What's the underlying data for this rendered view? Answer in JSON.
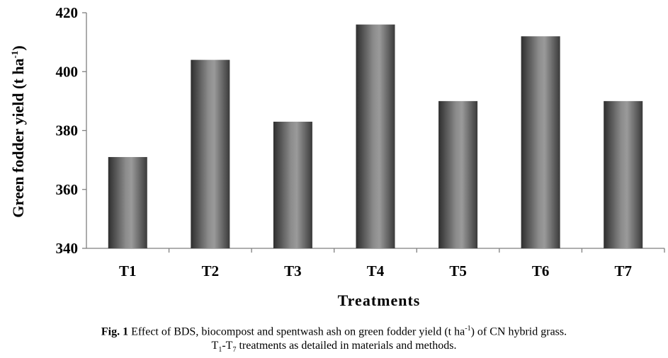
{
  "chart_data": {
    "type": "bar",
    "categories": [
      "T1",
      "T2",
      "T3",
      "T4",
      "T5",
      "T6",
      "T7"
    ],
    "values": [
      371,
      404,
      383,
      416,
      390,
      412,
      390
    ],
    "xlabel": "Treatments",
    "ylabel": {
      "text": "Green fodder yield (t ha",
      "sup": "-1",
      "close": ")"
    },
    "ylim": [
      340,
      420
    ],
    "yticks": [
      340,
      360,
      380,
      400,
      420
    ],
    "grid": false,
    "legend": "none",
    "bar_color": "#6e6e6e"
  },
  "caption": {
    "fig_label": "Fig. 1",
    "line1_a": " Effect of BDS, biocompost and spentwash ash on green fodder yield (t ha",
    "line1_sup": "-1",
    "line1_b": ") of CN hybrid grass.",
    "line2_t": "T",
    "line2_sub1": "1",
    "line2_dash": "-T",
    "line2_sub2": "7",
    "line2_rest": " treatments as detailed in materials and methods."
  }
}
